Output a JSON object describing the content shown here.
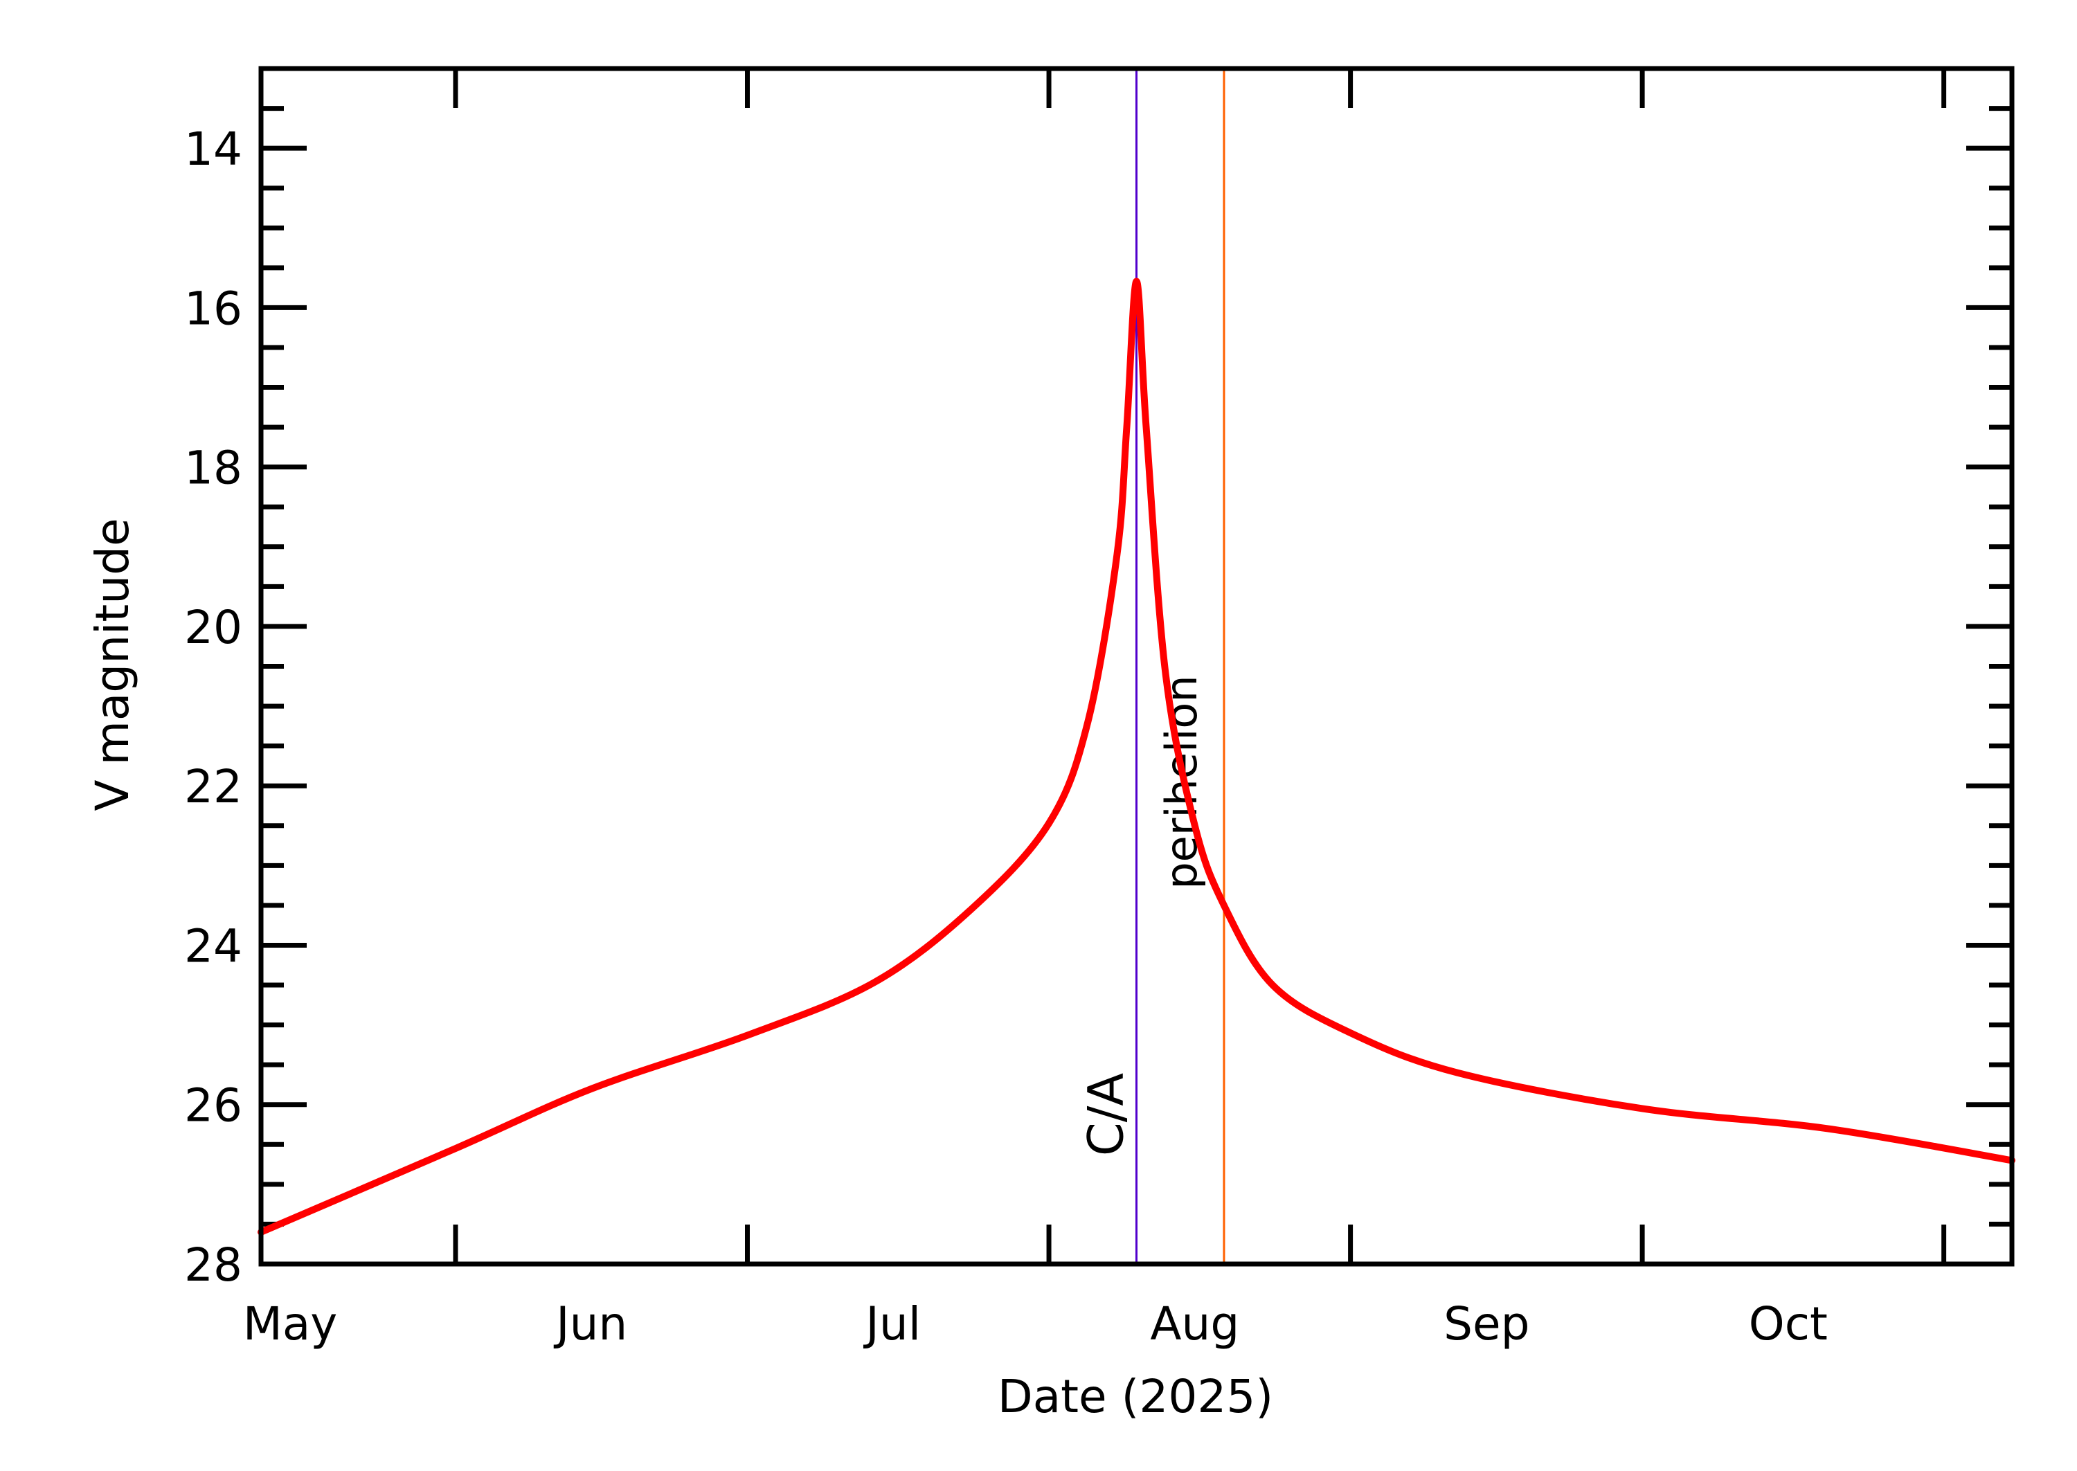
{
  "chart_data": {
    "type": "line",
    "title": "",
    "xlabel": "Date (2025)",
    "ylabel": "V magnitude",
    "xlim": [
      "2025-05-12",
      "2025-11-08"
    ],
    "ylim": [
      28,
      13
    ],
    "y_inverted": true,
    "grid": false,
    "x_tick_dates": [
      "2025-06-01",
      "2025-07-01",
      "2025-08-01",
      "2025-09-01",
      "2025-10-01",
      "2025-11-01"
    ],
    "x_month_labels": [
      {
        "label": "May",
        "date": "2025-05-15"
      },
      {
        "label": "Jun",
        "date": "2025-06-15"
      },
      {
        "label": "Jul",
        "date": "2025-07-16"
      },
      {
        "label": "Aug",
        "date": "2025-08-16"
      },
      {
        "label": "Sep",
        "date": "2025-09-15"
      },
      {
        "label": "Oct",
        "date": "2025-10-16"
      }
    ],
    "y_ticks": [
      14,
      16,
      18,
      20,
      22,
      24,
      26,
      28
    ],
    "y_minor_step": 0.5,
    "series": [
      {
        "color": "#ff0000",
        "points": [
          [
            "2025-05-12",
            27.6
          ],
          [
            "2025-06-01",
            26.55
          ],
          [
            "2025-06-15",
            25.8
          ],
          [
            "2025-07-01",
            25.13
          ],
          [
            "2025-07-14",
            24.47
          ],
          [
            "2025-07-24",
            23.55
          ],
          [
            "2025-08-01",
            22.47
          ],
          [
            "2025-08-05",
            21.2
          ],
          [
            "2025-08-08",
            19.1
          ],
          [
            "2025-08-09",
            17.5
          ],
          [
            "2025-08-10",
            15.67
          ],
          [
            "2025-08-11",
            17.5
          ],
          [
            "2025-08-13",
            20.6
          ],
          [
            "2025-08-16",
            22.5
          ],
          [
            "2025-08-19",
            23.5
          ],
          [
            "2025-08-24",
            24.5
          ],
          [
            "2025-09-01",
            25.1
          ],
          [
            "2025-09-12",
            25.6
          ],
          [
            "2025-10-01",
            26.05
          ],
          [
            "2025-10-20",
            26.3
          ],
          [
            "2025-11-08",
            26.7
          ]
        ]
      }
    ],
    "annotations": [
      {
        "label": "C/A",
        "date": "2025-08-10",
        "color": "#5000cc"
      },
      {
        "label": "perihelion",
        "date": "2025-08-19",
        "color": "#ff6000"
      }
    ]
  }
}
